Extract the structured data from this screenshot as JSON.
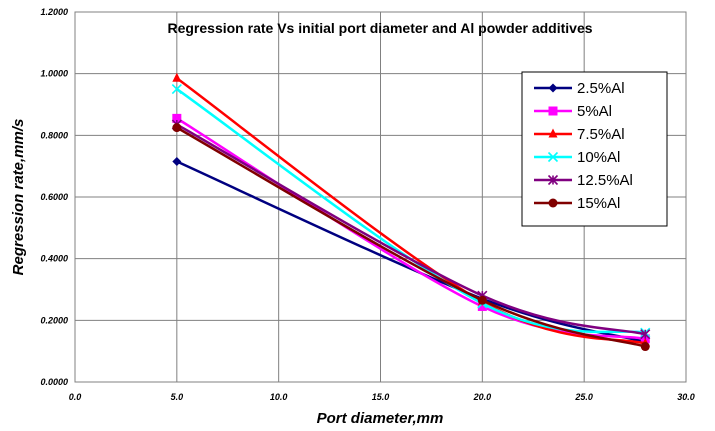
{
  "chart_data": {
    "type": "line",
    "title": "Regression rate Vs initial port diameter and Al powder additives",
    "xlabel": "Port diameter,mm",
    "ylabel": "Regression rate,mm/s",
    "xlim": [
      0,
      30
    ],
    "ylim": [
      0,
      1.2
    ],
    "x_ticks": [
      "0.0",
      "5.0",
      "10.0",
      "15.0",
      "20.0",
      "25.0",
      "30.0"
    ],
    "y_ticks": [
      "0.0000",
      "0.2000",
      "0.4000",
      "0.6000",
      "0.8000",
      "1.0000",
      "1.2000"
    ],
    "grid": true,
    "smooth": true,
    "legend_position": "top-right",
    "x": [
      5,
      20,
      28
    ],
    "series": [
      {
        "name": "2.5%Al",
        "values": [
          0.715,
          0.27,
          0.13
        ],
        "color": "#000080",
        "marker": "diamond"
      },
      {
        "name": "5%Al",
        "values": [
          0.855,
          0.245,
          0.14
        ],
        "color": "#ff00ff",
        "marker": "square"
      },
      {
        "name": "7.5%Al",
        "values": [
          0.985,
          0.26,
          0.125
        ],
        "color": "#ff0000",
        "marker": "triangle"
      },
      {
        "name": "10%Al",
        "values": [
          0.95,
          0.255,
          0.16
        ],
        "color": "#00ffff",
        "marker": "x"
      },
      {
        "name": "12.5%Al",
        "values": [
          0.835,
          0.28,
          0.155
        ],
        "color": "#800080",
        "marker": "star"
      },
      {
        "name": "15%Al",
        "values": [
          0.825,
          0.265,
          0.115
        ],
        "color": "#800000",
        "marker": "circle"
      }
    ]
  }
}
